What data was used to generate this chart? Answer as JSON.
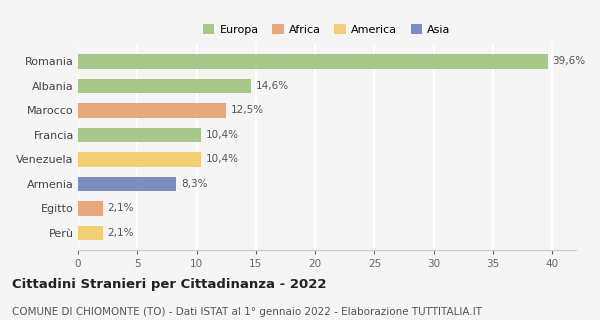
{
  "countries": [
    "Romania",
    "Albania",
    "Marocco",
    "Francia",
    "Venezuela",
    "Armenia",
    "Egitto",
    "Perù"
  ],
  "values": [
    39.6,
    14.6,
    12.5,
    10.4,
    10.4,
    8.3,
    2.1,
    2.1
  ],
  "labels": [
    "39,6%",
    "14,6%",
    "12,5%",
    "10,4%",
    "10,4%",
    "8,3%",
    "2,1%",
    "2,1%"
  ],
  "colors": [
    "#a8c88a",
    "#a8c88a",
    "#e8a87c",
    "#a8c88a",
    "#f0d070",
    "#7a8ec0",
    "#e8a87c",
    "#f0d070"
  ],
  "legend_labels": [
    "Europa",
    "Africa",
    "America",
    "Asia"
  ],
  "legend_colors": [
    "#a8c88a",
    "#e8a87c",
    "#f0d070",
    "#7a8ec0"
  ],
  "xlim": [
    0,
    42
  ],
  "xticks": [
    0,
    5,
    10,
    15,
    20,
    25,
    30,
    35,
    40
  ],
  "title": "Cittadini Stranieri per Cittadinanza - 2022",
  "subtitle": "COMUNE DI CHIOMONTE (TO) - Dati ISTAT al 1° gennaio 2022 - Elaborazione TUTTITALIA.IT",
  "background_color": "#f5f5f5",
  "grid_color": "#ffffff",
  "bar_height": 0.6,
  "title_fontsize": 9.5,
  "subtitle_fontsize": 7.5,
  "label_fontsize": 7.5,
  "ytick_fontsize": 8,
  "xtick_fontsize": 7.5,
  "legend_fontsize": 8
}
